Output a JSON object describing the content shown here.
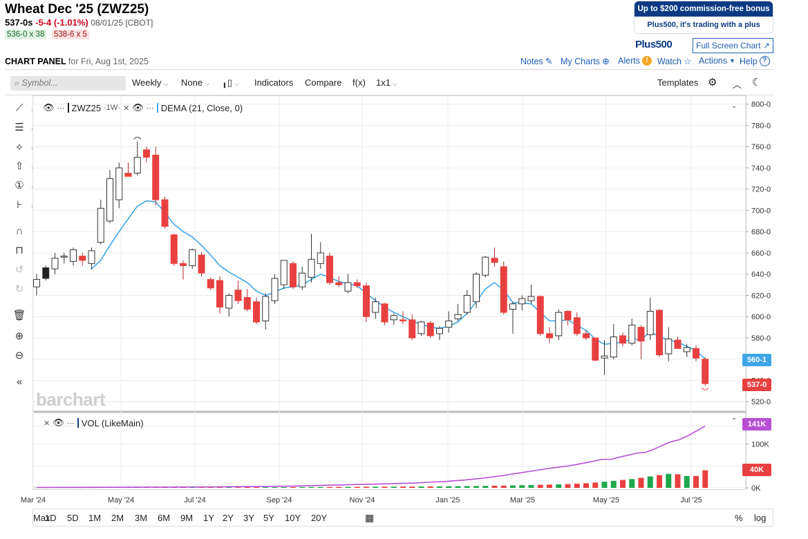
{
  "header": {
    "title": "Wheat Dec '25 (ZWZ25)",
    "last": "537-0s",
    "change": "-5-4 (-1.01%)",
    "meta": "08/01/25 [CBOT]",
    "bid": "536-0 x 38",
    "ask": "538-6 x 5"
  },
  "ad": {
    "top": "Up to $200 commission-free bonus",
    "bottom": "Plus500, it's trading with a plus",
    "logo": "Plus500"
  },
  "full_screen": "Full Screen Chart",
  "panel": {
    "title": "CHART PANEL",
    "date": "for Fri, Aug 1st, 2025"
  },
  "links": {
    "notes": "Notes",
    "my_charts": "My Charts",
    "alerts": "Alerts",
    "watch": "Watch",
    "actions": "Actions",
    "help": "Help"
  },
  "toolbar": {
    "symbol_placeholder": "Symbol...",
    "period": "Weekly",
    "overlay": "None",
    "indicators": "Indicators",
    "compare": "Compare",
    "fx": "f(x)",
    "layout": "1x1",
    "templates": "Templates"
  },
  "legend": {
    "symbol": "ZWZ25",
    "interval": "·1W·",
    "study": "DEMA (21, Close, 0)",
    "volume": "VOL (LikeMain)"
  },
  "watermark": "barchart",
  "price_tags": {
    "dema": "560-1",
    "last": "537-0",
    "vol": "141K",
    "vol_last": "40K"
  },
  "timeframes": [
    "1D",
    "5D",
    "1M",
    "2M",
    "3M",
    "6M",
    "9M",
    "1Y",
    "2Y",
    "3Y",
    "5Y",
    "10Y",
    "20Y",
    "Max"
  ],
  "scale_buttons": {
    "percent": "%",
    "log": "log"
  },
  "colors": {
    "up": "#ffffff",
    "down": "#e84040",
    "dema": "#3ea6e8",
    "vol_line": "#b84fd6",
    "vol_up": "#1fa84b",
    "vol_down": "#e84040",
    "brand": "#0b3a82",
    "link": "#1d5fb3"
  },
  "chart_data": [
    {
      "type": "candlestick",
      "title": "Wheat Dec '25 (ZWZ25)",
      "interval": "Weekly",
      "y_ticks": [
        "800-0",
        "780-0",
        "760-0",
        "740-0",
        "720-0",
        "700-0",
        "680-0",
        "660-0",
        "640-0",
        "620-0",
        "600-0",
        "580-0",
        "560-0",
        "540-0",
        "520-0"
      ],
      "x_ticks": [
        "Mar '24",
        "May '24",
        "Jul '24",
        "Sep '24",
        "Nov '24",
        "Jan '25",
        "Mar '25",
        "May '25",
        "Jul '25"
      ],
      "ylim": [
        513,
        805
      ],
      "dema_last": 560.1,
      "candles": [
        {
          "o": 628,
          "h": 640,
          "l": 620,
          "c": 635
        },
        {
          "o": 636,
          "h": 648,
          "l": 634,
          "c": 646
        },
        {
          "o": 645,
          "h": 660,
          "l": 640,
          "c": 655
        },
        {
          "o": 656,
          "h": 660,
          "l": 650,
          "c": 657
        },
        {
          "o": 652,
          "h": 665,
          "l": 648,
          "c": 663
        },
        {
          "o": 657,
          "h": 660,
          "l": 648,
          "c": 653
        },
        {
          "o": 650,
          "h": 665,
          "l": 644,
          "c": 662
        },
        {
          "o": 670,
          "h": 710,
          "l": 668,
          "c": 702
        },
        {
          "o": 690,
          "h": 738,
          "l": 688,
          "c": 730
        },
        {
          "o": 710,
          "h": 745,
          "l": 702,
          "c": 740
        },
        {
          "o": 735,
          "h": 745,
          "l": 732,
          "c": 732
        },
        {
          "o": 735,
          "h": 765,
          "l": 733,
          "c": 750
        },
        {
          "o": 757,
          "h": 760,
          "l": 745,
          "c": 750
        },
        {
          "o": 752,
          "h": 760,
          "l": 705,
          "c": 710
        },
        {
          "o": 710,
          "h": 713,
          "l": 683,
          "c": 685
        },
        {
          "o": 677,
          "h": 678,
          "l": 648,
          "c": 650
        },
        {
          "o": 650,
          "h": 653,
          "l": 635,
          "c": 648
        },
        {
          "o": 648,
          "h": 664,
          "l": 645,
          "c": 663
        },
        {
          "o": 658,
          "h": 661,
          "l": 638,
          "c": 641
        },
        {
          "o": 635,
          "h": 637,
          "l": 625,
          "c": 627
        },
        {
          "o": 634,
          "h": 638,
          "l": 603,
          "c": 609
        },
        {
          "o": 608,
          "h": 622,
          "l": 600,
          "c": 620
        },
        {
          "o": 625,
          "h": 634,
          "l": 612,
          "c": 615
        },
        {
          "o": 618,
          "h": 626,
          "l": 605,
          "c": 607
        },
        {
          "o": 614,
          "h": 618,
          "l": 593,
          "c": 595
        },
        {
          "o": 596,
          "h": 622,
          "l": 588,
          "c": 619
        },
        {
          "o": 615,
          "h": 640,
          "l": 612,
          "c": 636
        },
        {
          "o": 630,
          "h": 652,
          "l": 626,
          "c": 653
        },
        {
          "o": 650,
          "h": 652,
          "l": 626,
          "c": 628
        },
        {
          "o": 628,
          "h": 647,
          "l": 625,
          "c": 641
        },
        {
          "o": 637,
          "h": 678,
          "l": 632,
          "c": 654
        },
        {
          "o": 650,
          "h": 670,
          "l": 645,
          "c": 660
        },
        {
          "o": 657,
          "h": 660,
          "l": 630,
          "c": 632
        },
        {
          "o": 632,
          "h": 638,
          "l": 628,
          "c": 630
        },
        {
          "o": 624,
          "h": 640,
          "l": 622,
          "c": 632
        },
        {
          "o": 632,
          "h": 635,
          "l": 627,
          "c": 629
        },
        {
          "o": 629,
          "h": 632,
          "l": 595,
          "c": 600
        },
        {
          "o": 604,
          "h": 618,
          "l": 598,
          "c": 614
        },
        {
          "o": 612,
          "h": 613,
          "l": 592,
          "c": 595
        },
        {
          "o": 597,
          "h": 603,
          "l": 592,
          "c": 601
        },
        {
          "o": 597,
          "h": 605,
          "l": 593,
          "c": 596
        },
        {
          "o": 597,
          "h": 602,
          "l": 578,
          "c": 580
        },
        {
          "o": 584,
          "h": 596,
          "l": 582,
          "c": 595
        },
        {
          "o": 594,
          "h": 596,
          "l": 580,
          "c": 582
        },
        {
          "o": 584,
          "h": 591,
          "l": 578,
          "c": 589
        },
        {
          "o": 590,
          "h": 605,
          "l": 585,
          "c": 596
        },
        {
          "o": 598,
          "h": 612,
          "l": 596,
          "c": 602
        },
        {
          "o": 604,
          "h": 625,
          "l": 602,
          "c": 620
        },
        {
          "o": 614,
          "h": 642,
          "l": 608,
          "c": 640
        },
        {
          "o": 639,
          "h": 657,
          "l": 637,
          "c": 656
        },
        {
          "o": 655,
          "h": 665,
          "l": 647,
          "c": 651
        },
        {
          "o": 647,
          "h": 652,
          "l": 602,
          "c": 604
        },
        {
          "o": 607,
          "h": 614,
          "l": 584,
          "c": 612
        },
        {
          "o": 612,
          "h": 620,
          "l": 606,
          "c": 617
        },
        {
          "o": 615,
          "h": 630,
          "l": 612,
          "c": 619
        },
        {
          "o": 619,
          "h": 620,
          "l": 582,
          "c": 584
        },
        {
          "o": 584,
          "h": 590,
          "l": 575,
          "c": 580
        },
        {
          "o": 582,
          "h": 607,
          "l": 578,
          "c": 604
        },
        {
          "o": 605,
          "h": 606,
          "l": 592,
          "c": 597
        },
        {
          "o": 599,
          "h": 604,
          "l": 582,
          "c": 584
        },
        {
          "o": 584,
          "h": 587,
          "l": 578,
          "c": 580
        },
        {
          "o": 580,
          "h": 580,
          "l": 558,
          "c": 559
        },
        {
          "o": 561,
          "h": 578,
          "l": 545,
          "c": 563
        },
        {
          "o": 562,
          "h": 593,
          "l": 560,
          "c": 581
        },
        {
          "o": 582,
          "h": 585,
          "l": 572,
          "c": 575
        },
        {
          "o": 575,
          "h": 598,
          "l": 573,
          "c": 592
        },
        {
          "o": 590,
          "h": 592,
          "l": 560,
          "c": 577
        },
        {
          "o": 583,
          "h": 618,
          "l": 578,
          "c": 605
        },
        {
          "o": 606,
          "h": 607,
          "l": 562,
          "c": 564
        },
        {
          "o": 565,
          "h": 590,
          "l": 558,
          "c": 579
        },
        {
          "o": 578,
          "h": 581,
          "l": 570,
          "c": 570
        },
        {
          "o": 567,
          "h": 574,
          "l": 562,
          "c": 571
        },
        {
          "o": 570,
          "h": 573,
          "l": 558,
          "c": 561
        },
        {
          "o": 560,
          "h": 562,
          "l": 535,
          "c": 537
        }
      ],
      "dema": [
        [
          6,
          645
        ],
        [
          7,
          653
        ],
        [
          8,
          667
        ],
        [
          9,
          680
        ],
        [
          10,
          692
        ],
        [
          11,
          704
        ],
        [
          12,
          709
        ],
        [
          13,
          708
        ],
        [
          14,
          698
        ],
        [
          15,
          687
        ],
        [
          16,
          680
        ],
        [
          17,
          675
        ],
        [
          18,
          667
        ],
        [
          19,
          658
        ],
        [
          20,
          648
        ],
        [
          21,
          642
        ],
        [
          22,
          637
        ],
        [
          23,
          632
        ],
        [
          24,
          624
        ],
        [
          25,
          620
        ],
        [
          26,
          623
        ],
        [
          27,
          627
        ],
        [
          28,
          628
        ],
        [
          29,
          630
        ],
        [
          30,
          635
        ],
        [
          31,
          640
        ],
        [
          32,
          637
        ],
        [
          33,
          633
        ],
        [
          34,
          631
        ],
        [
          35,
          629
        ],
        [
          36,
          622
        ],
        [
          37,
          615
        ],
        [
          38,
          609
        ],
        [
          39,
          604
        ],
        [
          40,
          600
        ],
        [
          41,
          596
        ],
        [
          42,
          593
        ],
        [
          43,
          590
        ],
        [
          44,
          589
        ],
        [
          45,
          591
        ],
        [
          46,
          595
        ],
        [
          47,
          603
        ],
        [
          48,
          614
        ],
        [
          49,
          626
        ],
        [
          50,
          632
        ],
        [
          51,
          625
        ],
        [
          52,
          613
        ],
        [
          53,
          613
        ],
        [
          54,
          612
        ],
        [
          55,
          604
        ],
        [
          56,
          596
        ],
        [
          57,
          596
        ],
        [
          58,
          597
        ],
        [
          59,
          592
        ],
        [
          60,
          587
        ],
        [
          61,
          579
        ],
        [
          62,
          574
        ],
        [
          63,
          575
        ],
        [
          64,
          576
        ],
        [
          65,
          579
        ],
        [
          66,
          578
        ],
        [
          67,
          586
        ],
        [
          68,
          581
        ],
        [
          69,
          578
        ],
        [
          70,
          576
        ],
        [
          71,
          572
        ],
        [
          72,
          568
        ],
        [
          73,
          560.1
        ]
      ]
    },
    {
      "type": "bar",
      "title": "VOL (LikeMain)",
      "y_ticks": [
        "141K",
        "100K",
        "50K",
        "0K"
      ],
      "ylim": [
        0,
        145
      ],
      "units": "K",
      "volume": [
        0.5,
        0.5,
        0.6,
        0.6,
        0.6,
        0.6,
        0.6,
        0.7,
        0.8,
        0.8,
        0.8,
        0.9,
        0.9,
        1,
        1,
        1.1,
        1.1,
        1.2,
        1.2,
        1.2,
        1.3,
        1.4,
        1.4,
        1.5,
        1.5,
        1.6,
        1.6,
        1.7,
        1.8,
        1.9,
        2,
        2,
        2.1,
        2.2,
        2.3,
        2.4,
        2.5,
        2.6,
        2.7,
        2.8,
        3,
        3,
        3.2,
        3.3,
        3.5,
        3.6,
        3.8,
        4,
        4.2,
        4.5,
        4.8,
        5,
        5.5,
        6,
        6.5,
        7,
        7.5,
        8,
        8.5,
        9.5,
        10.5,
        12,
        14,
        16,
        18,
        20,
        23,
        26,
        29,
        32,
        31,
        27,
        27,
        40
      ],
      "vol_line": [
        [
          0,
          1
        ],
        [
          20,
          2
        ],
        [
          30,
          4
        ],
        [
          34,
          6
        ],
        [
          38,
          8
        ],
        [
          42,
          10
        ],
        [
          44,
          11
        ],
        [
          46,
          13
        ],
        [
          48,
          15
        ],
        [
          50,
          18
        ],
        [
          52,
          22
        ],
        [
          54,
          27
        ],
        [
          56,
          33
        ],
        [
          58,
          39
        ],
        [
          60,
          45
        ],
        [
          62,
          50
        ],
        [
          64,
          57
        ],
        [
          66,
          65
        ],
        [
          67,
          65
        ],
        [
          68,
          70
        ],
        [
          70,
          79
        ],
        [
          71,
          81
        ],
        [
          72,
          88
        ],
        [
          73,
          97
        ],
        [
          74,
          105
        ],
        [
          75,
          110
        ],
        [
          76,
          119
        ],
        [
          77,
          130
        ],
        [
          78,
          141
        ]
      ]
    }
  ]
}
